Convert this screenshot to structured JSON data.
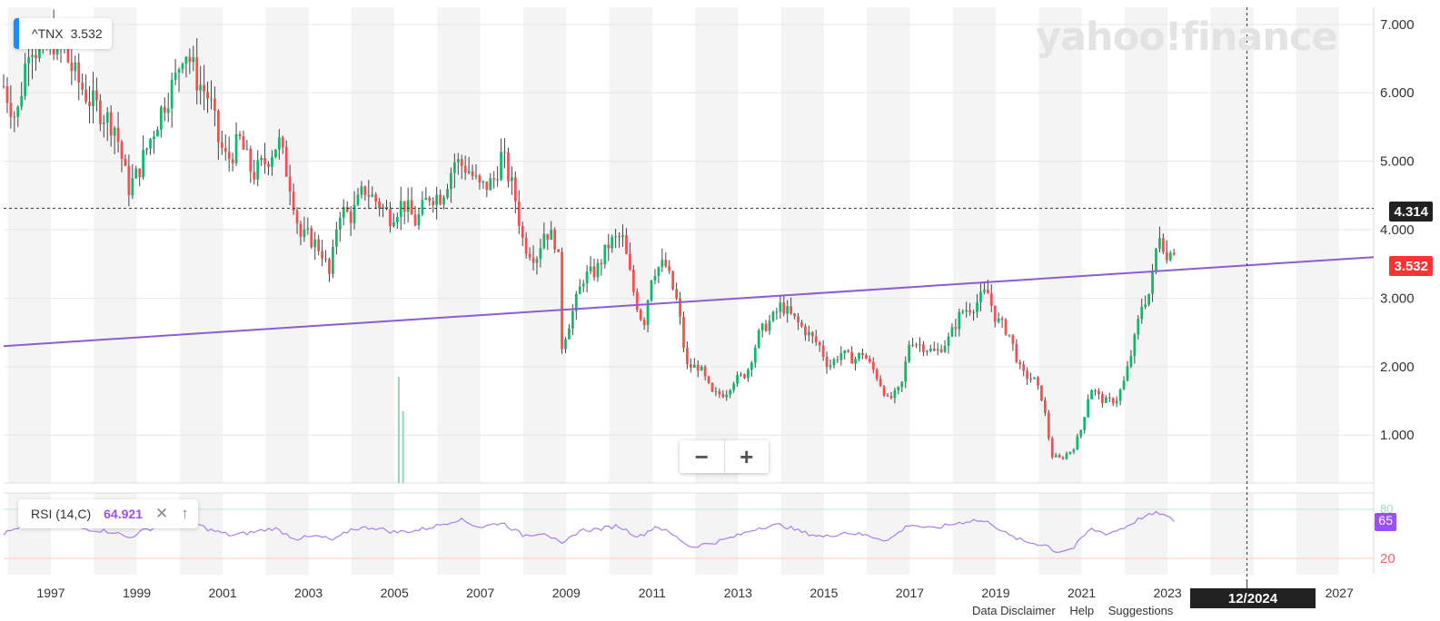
{
  "ticker": {
    "symbol": "^TNX",
    "last": "3.532"
  },
  "watermark": "yahoo!finance",
  "crosshair": {
    "price_label": "4.314",
    "date_label": "12/2024"
  },
  "last_price_label": "3.532",
  "rsi": {
    "label": "RSI (14,C)",
    "value": "64.921",
    "flag": "65",
    "upper_level": "80",
    "lower_level": "20",
    "close_icon": "close-icon",
    "up_icon": "arrow-up-icon"
  },
  "zoom": {
    "out_label": "−",
    "in_label": "+"
  },
  "footer_links": [
    "Data Disclaimer",
    "Help",
    "Suggestions"
  ],
  "colors": {
    "up": "#0fb86a",
    "down": "#ff4d4d",
    "trendline": "#8b5cd6",
    "rsi_line": "#a780ef",
    "band": "#f4f4f4",
    "ticker_accent": "#1e88ff"
  },
  "chart_data": {
    "type": "candlestick",
    "title": "",
    "interval": "monthly",
    "y_axis": {
      "ticks": [
        1,
        2,
        3,
        4,
        5,
        6,
        7
      ],
      "tick_labels": [
        "1.000",
        "2.000",
        "3.000",
        "4.000",
        "5.000",
        "6.000",
        "7.000"
      ],
      "range": [
        0.3,
        7.25
      ]
    },
    "x_axis": {
      "ticks": [
        1997,
        1999,
        2001,
        2003,
        2005,
        2007,
        2009,
        2011,
        2013,
        2015,
        2017,
        2019,
        2021,
        2023,
        2025,
        2027
      ],
      "tick_labels": [
        "1997",
        "1999",
        "2001",
        "2003",
        "2005",
        "2007",
        "2009",
        "2011",
        "2013",
        "2015",
        "2017",
        "2019",
        "2021",
        "2023",
        "",
        "2027"
      ],
      "range": [
        1995.9,
        2027.8
      ]
    },
    "price_path": [
      [
        1995.9,
        6.1
      ],
      [
        1996.2,
        5.6
      ],
      [
        1996.5,
        6.8
      ],
      [
        1996.8,
        6.5
      ],
      [
        1997.0,
        6.8
      ],
      [
        1997.3,
        6.6
      ],
      [
        1997.6,
        6.2
      ],
      [
        1997.9,
        5.9
      ],
      [
        1998.2,
        5.7
      ],
      [
        1998.5,
        5.5
      ],
      [
        1998.8,
        4.6
      ],
      [
        1999.0,
        4.8
      ],
      [
        1999.3,
        5.3
      ],
      [
        1999.6,
        5.8
      ],
      [
        1999.9,
        6.2
      ],
      [
        2000.1,
        6.7
      ],
      [
        2000.4,
        6.2
      ],
      [
        2000.7,
        5.9
      ],
      [
        2000.9,
        5.3
      ],
      [
        2001.1,
        5.0
      ],
      [
        2001.4,
        5.3
      ],
      [
        2001.7,
        4.8
      ],
      [
        2002.0,
        5.0
      ],
      [
        2002.3,
        5.3
      ],
      [
        2002.6,
        4.6
      ],
      [
        2002.8,
        3.9
      ],
      [
        2003.0,
        3.9
      ],
      [
        2003.3,
        3.7
      ],
      [
        2003.5,
        3.3
      ],
      [
        2003.7,
        4.3
      ],
      [
        2004.0,
        4.2
      ],
      [
        2004.3,
        4.6
      ],
      [
        2004.6,
        4.4
      ],
      [
        2004.9,
        4.2
      ],
      [
        2005.2,
        4.4
      ],
      [
        2005.5,
        4.1
      ],
      [
        2005.8,
        4.5
      ],
      [
        2006.1,
        4.5
      ],
      [
        2006.4,
        5.0
      ],
      [
        2006.7,
        4.9
      ],
      [
        2007.0,
        4.6
      ],
      [
        2007.3,
        4.7
      ],
      [
        2007.5,
        5.1
      ],
      [
        2007.8,
        4.5
      ],
      [
        2008.0,
        3.8
      ],
      [
        2008.3,
        3.6
      ],
      [
        2008.5,
        4.0
      ],
      [
        2008.8,
        3.8
      ],
      [
        2008.9,
        2.3
      ],
      [
        2009.2,
        2.9
      ],
      [
        2009.4,
        3.3
      ],
      [
        2009.7,
        3.4
      ],
      [
        2010.0,
        3.8
      ],
      [
        2010.3,
        3.9
      ],
      [
        2010.6,
        3.0
      ],
      [
        2010.8,
        2.6
      ],
      [
        2011.0,
        3.4
      ],
      [
        2011.3,
        3.5
      ],
      [
        2011.6,
        2.9
      ],
      [
        2011.8,
        2.0
      ],
      [
        2012.1,
        2.0
      ],
      [
        2012.4,
        1.6
      ],
      [
        2012.7,
        1.6
      ],
      [
        2012.9,
        1.8
      ],
      [
        2013.2,
        1.9
      ],
      [
        2013.5,
        2.5
      ],
      [
        2013.8,
        2.7
      ],
      [
        2014.0,
        2.9
      ],
      [
        2014.3,
        2.7
      ],
      [
        2014.6,
        2.5
      ],
      [
        2014.9,
        2.3
      ],
      [
        2015.1,
        2.0
      ],
      [
        2015.4,
        2.2
      ],
      [
        2015.7,
        2.1
      ],
      [
        2015.9,
        2.2
      ],
      [
        2016.2,
        1.9
      ],
      [
        2016.5,
        1.5
      ],
      [
        2016.8,
        1.7
      ],
      [
        2017.0,
        2.4
      ],
      [
        2017.3,
        2.3
      ],
      [
        2017.6,
        2.2
      ],
      [
        2017.9,
        2.4
      ],
      [
        2018.2,
        2.8
      ],
      [
        2018.5,
        2.9
      ],
      [
        2018.8,
        3.1
      ],
      [
        2019.0,
        2.7
      ],
      [
        2019.3,
        2.5
      ],
      [
        2019.6,
        1.9
      ],
      [
        2019.9,
        1.8
      ],
      [
        2020.1,
        1.5
      ],
      [
        2020.3,
        0.7
      ],
      [
        2020.5,
        0.65
      ],
      [
        2020.8,
        0.8
      ],
      [
        2021.0,
        1.1
      ],
      [
        2021.2,
        1.7
      ],
      [
        2021.5,
        1.5
      ],
      [
        2021.8,
        1.5
      ],
      [
        2022.0,
        1.8
      ],
      [
        2022.2,
        2.3
      ],
      [
        2022.4,
        2.9
      ],
      [
        2022.6,
        3.1
      ],
      [
        2022.8,
        4.0
      ],
      [
        2022.9,
        3.8
      ],
      [
        2023.0,
        3.5
      ],
      [
        2023.1,
        3.9
      ],
      [
        2023.2,
        3.53
      ]
    ],
    "trendline": {
      "start": [
        1995.9,
        2.3
      ],
      "end": [
        2027.8,
        3.6
      ]
    },
    "volume": [
      [
        2005.1,
        1.85
      ],
      [
        2005.2,
        1.35
      ],
      [
        2005.3,
        0.15
      ],
      [
        2005.4,
        0.1
      ],
      [
        2005.5,
        0.12
      ]
    ],
    "rsi_path": [
      [
        1995.9,
        50
      ],
      [
        1996.5,
        64
      ],
      [
        1997.0,
        63
      ],
      [
        1997.5,
        58
      ],
      [
        1998.0,
        55
      ],
      [
        1998.5,
        52
      ],
      [
        1998.8,
        45
      ],
      [
        1999.2,
        55
      ],
      [
        1999.8,
        62
      ],
      [
        2000.2,
        66
      ],
      [
        2000.7,
        55
      ],
      [
        2001.2,
        48
      ],
      [
        2001.7,
        52
      ],
      [
        2002.2,
        57
      ],
      [
        2002.7,
        44
      ],
      [
        2003.2,
        47
      ],
      [
        2003.6,
        42
      ],
      [
        2004.0,
        56
      ],
      [
        2004.5,
        58
      ],
      [
        2005.0,
        52
      ],
      [
        2005.5,
        54
      ],
      [
        2006.0,
        60
      ],
      [
        2006.5,
        68
      ],
      [
        2007.0,
        58
      ],
      [
        2007.5,
        64
      ],
      [
        2008.0,
        48
      ],
      [
        2008.5,
        52
      ],
      [
        2008.9,
        36
      ],
      [
        2009.3,
        54
      ],
      [
        2009.8,
        56
      ],
      [
        2010.2,
        60
      ],
      [
        2010.7,
        46
      ],
      [
        2011.1,
        60
      ],
      [
        2011.6,
        45
      ],
      [
        2011.9,
        34
      ],
      [
        2012.5,
        40
      ],
      [
        2013.0,
        48
      ],
      [
        2013.5,
        58
      ],
      [
        2014.0,
        61
      ],
      [
        2014.5,
        52
      ],
      [
        2015.0,
        46
      ],
      [
        2015.5,
        52
      ],
      [
        2016.0,
        48
      ],
      [
        2016.5,
        42
      ],
      [
        2017.0,
        62
      ],
      [
        2017.5,
        56
      ],
      [
        2018.0,
        62
      ],
      [
        2018.5,
        67
      ],
      [
        2018.9,
        63
      ],
      [
        2019.3,
        48
      ],
      [
        2019.7,
        40
      ],
      [
        2020.2,
        36
      ],
      [
        2020.4,
        28
      ],
      [
        2020.8,
        32
      ],
      [
        2021.2,
        56
      ],
      [
        2021.6,
        50
      ],
      [
        2022.0,
        58
      ],
      [
        2022.4,
        70
      ],
      [
        2022.8,
        76
      ],
      [
        2023.0,
        70
      ],
      [
        2023.2,
        65
      ]
    ]
  }
}
